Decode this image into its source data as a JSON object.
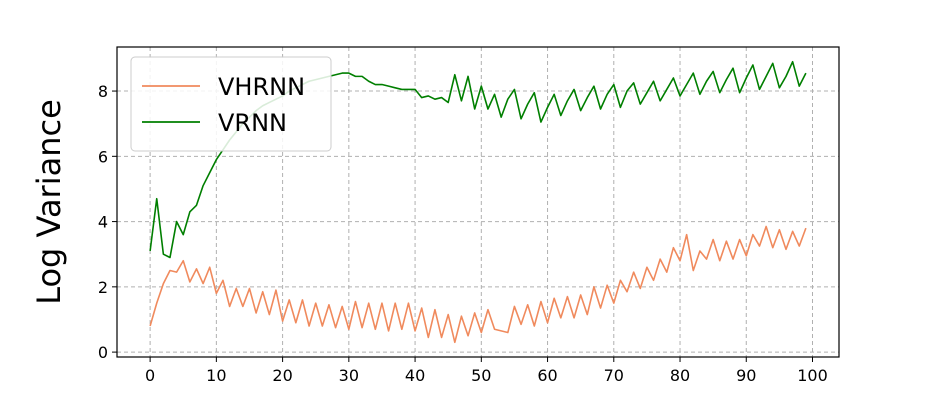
{
  "chart_data": {
    "type": "line",
    "title": "",
    "xlabel": "",
    "ylabel": "Log Variance",
    "xlim": [
      -5,
      104
    ],
    "ylim": [
      -0.15,
      9.35
    ],
    "xticks": [
      0,
      10,
      20,
      30,
      40,
      50,
      60,
      70,
      80,
      90,
      100
    ],
    "yticks": [
      0,
      2,
      4,
      6,
      8
    ],
    "grid": true,
    "legend_position": "top-left",
    "series": [
      {
        "name": "VHRNN",
        "color": "#f08a5d",
        "x": [
          0,
          1,
          2,
          3,
          4,
          5,
          6,
          7,
          8,
          9,
          10,
          11,
          12,
          13,
          14,
          15,
          16,
          17,
          18,
          19,
          20,
          21,
          22,
          23,
          24,
          25,
          26,
          27,
          28,
          29,
          30,
          31,
          32,
          33,
          34,
          35,
          36,
          37,
          38,
          39,
          40,
          41,
          42,
          43,
          44,
          45,
          46,
          47,
          48,
          49,
          50,
          51,
          52,
          53,
          54,
          55,
          56,
          57,
          58,
          59,
          60,
          61,
          62,
          63,
          64,
          65,
          66,
          67,
          68,
          69,
          70,
          71,
          72,
          73,
          74,
          75,
          76,
          77,
          78,
          79,
          80,
          81,
          82,
          83,
          84,
          85,
          86,
          87,
          88,
          89,
          90,
          91,
          92,
          93,
          94,
          95,
          96,
          97,
          98,
          99
        ],
        "values": [
          0.8,
          1.5,
          2.1,
          2.5,
          2.45,
          2.8,
          2.15,
          2.55,
          2.1,
          2.6,
          1.8,
          2.2,
          1.4,
          1.95,
          1.4,
          1.95,
          1.2,
          1.85,
          1.15,
          1.9,
          0.95,
          1.6,
          0.9,
          1.6,
          0.8,
          1.5,
          0.8,
          1.45,
          0.75,
          1.4,
          0.7,
          1.55,
          0.75,
          1.5,
          0.7,
          1.5,
          0.65,
          1.5,
          0.7,
          1.5,
          0.65,
          1.35,
          0.45,
          1.3,
          0.45,
          1.15,
          0.3,
          1.1,
          0.5,
          1.2,
          0.6,
          1.3,
          0.7,
          0.65,
          0.6,
          1.4,
          0.85,
          1.45,
          0.8,
          1.55,
          0.9,
          1.65,
          1.05,
          1.7,
          1.05,
          1.75,
          1.15,
          2.0,
          1.35,
          2.05,
          1.5,
          2.2,
          1.85,
          2.45,
          1.95,
          2.6,
          2.2,
          2.85,
          2.45,
          3.2,
          2.8,
          3.6,
          2.5,
          3.1,
          2.85,
          3.45,
          2.8,
          3.4,
          2.85,
          3.45,
          2.95,
          3.6,
          3.25,
          3.85,
          3.2,
          3.75,
          3.15,
          3.7,
          3.25,
          3.8
        ]
      },
      {
        "name": "VRNN",
        "color": "#007f00",
        "x": [
          0,
          1,
          2,
          3,
          4,
          5,
          6,
          7,
          8,
          9,
          10,
          11,
          12,
          13,
          14,
          15,
          16,
          17,
          18,
          19,
          20,
          21,
          22,
          23,
          24,
          25,
          26,
          27,
          28,
          29,
          30,
          31,
          32,
          33,
          34,
          35,
          36,
          37,
          38,
          39,
          40,
          41,
          42,
          43,
          44,
          45,
          46,
          47,
          48,
          49,
          50,
          51,
          52,
          53,
          54,
          55,
          56,
          57,
          58,
          59,
          60,
          61,
          62,
          63,
          64,
          65,
          66,
          67,
          68,
          69,
          70,
          71,
          72,
          73,
          74,
          75,
          76,
          77,
          78,
          79,
          80,
          81,
          82,
          83,
          84,
          85,
          86,
          87,
          88,
          89,
          90,
          91,
          92,
          93,
          94,
          95,
          96,
          97,
          98,
          99
        ],
        "values": [
          3.1,
          4.7,
          3.0,
          2.9,
          4.0,
          3.6,
          4.3,
          4.5,
          5.1,
          5.5,
          5.9,
          6.2,
          6.5,
          6.75,
          7.0,
          7.2,
          7.4,
          7.55,
          7.65,
          7.75,
          7.85,
          8.0,
          8.1,
          8.2,
          8.3,
          8.35,
          8.4,
          8.45,
          8.5,
          8.55,
          8.55,
          8.45,
          8.45,
          8.3,
          8.2,
          8.2,
          8.15,
          8.1,
          8.05,
          8.05,
          8.05,
          7.8,
          7.85,
          7.75,
          7.8,
          7.65,
          8.5,
          7.7,
          8.45,
          7.45,
          8.15,
          7.45,
          7.9,
          7.2,
          7.75,
          8.05,
          7.15,
          7.6,
          7.95,
          7.05,
          7.5,
          7.9,
          7.25,
          7.7,
          8.05,
          7.4,
          7.8,
          8.15,
          7.45,
          7.9,
          8.2,
          7.5,
          8.0,
          8.25,
          7.6,
          7.95,
          8.3,
          7.7,
          8.05,
          8.4,
          7.85,
          8.2,
          8.55,
          7.9,
          8.3,
          8.6,
          7.95,
          8.35,
          8.7,
          7.95,
          8.4,
          8.8,
          8.05,
          8.45,
          8.85,
          8.1,
          8.45,
          8.9,
          8.15,
          8.55
        ]
      }
    ]
  }
}
